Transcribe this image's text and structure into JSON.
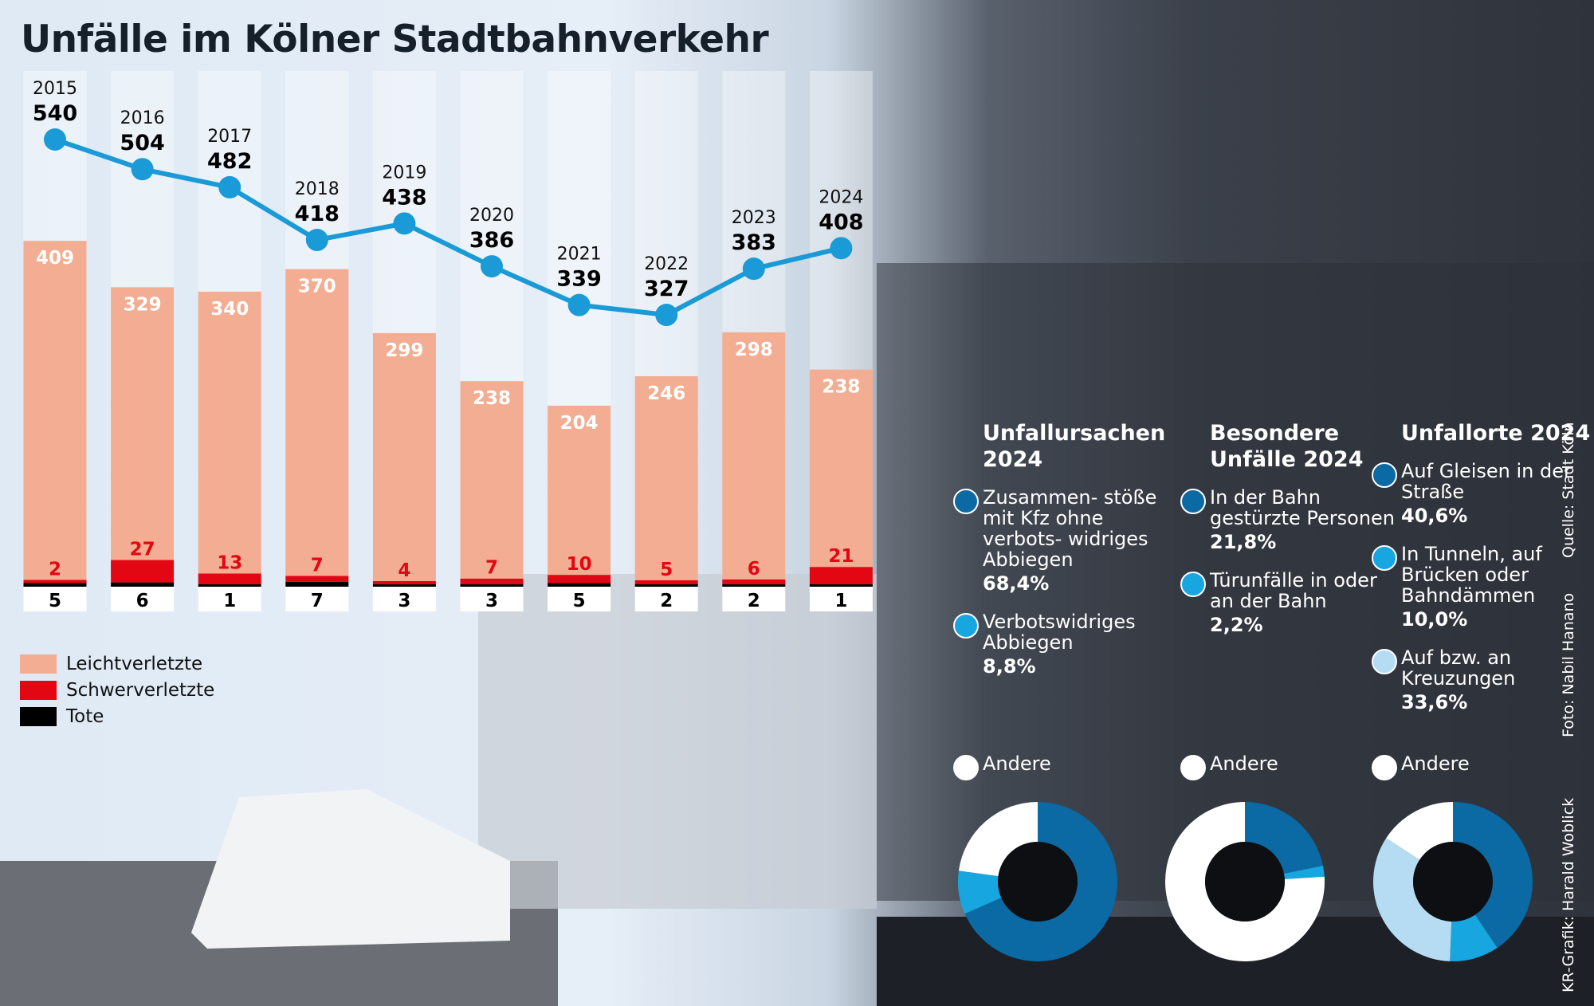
{
  "title": "Unfälle im Kölner Stadtbahnverkehr",
  "colors": {
    "leicht": "#f2ad92",
    "schwer": "#e30613",
    "tote": "#000000",
    "line": "#1a9ad6",
    "dark": "#0b6aa3",
    "mid": "#17a6df",
    "light": "#b6dcf3",
    "other": "#ffffff"
  },
  "chart_data": [
    {
      "type": "bar+line",
      "categories": [
        "2015",
        "2016",
        "2017",
        "2018",
        "2019",
        "2020",
        "2021",
        "2022",
        "2023",
        "2024"
      ],
      "series": [
        {
          "name": "Leichtverletzte",
          "values": [
            409,
            329,
            340,
            370,
            299,
            238,
            204,
            246,
            298,
            238
          ]
        },
        {
          "name": "Schwerverletzte",
          "values": [
            2,
            27,
            13,
            7,
            4,
            7,
            10,
            5,
            6,
            21
          ]
        },
        {
          "name": "Tote",
          "values": [
            5,
            6,
            1,
            7,
            3,
            3,
            5,
            2,
            2,
            1
          ]
        }
      ],
      "line_values": [
        540,
        504,
        482,
        418,
        438,
        386,
        339,
        327,
        383,
        408
      ],
      "stacked": true,
      "legend": "bottom-left"
    },
    {
      "type": "pie",
      "title": "Unfallursachen 2024",
      "slices": [
        {
          "label": "Zusammen- stöße mit Kfz ohne verbots- widriges Abbiegen",
          "value": 68.4,
          "pct": "68,4%",
          "color": "dark"
        },
        {
          "label": "Verbotswidriges Abbiegen",
          "value": 8.8,
          "pct": "8,8%",
          "color": "mid"
        },
        {
          "label": "Andere",
          "value": 22.8,
          "color": "other"
        }
      ]
    },
    {
      "type": "pie",
      "title": "Besondere Unfälle 2024",
      "slices": [
        {
          "label": "In der Bahn gestürzte Personen",
          "value": 21.8,
          "pct": "21,8%",
          "color": "dark"
        },
        {
          "label": "Türunfälle in oder an der Bahn",
          "value": 2.2,
          "pct": "2,2%",
          "color": "mid"
        },
        {
          "label": "Andere",
          "value": 76.0,
          "color": "other"
        }
      ]
    },
    {
      "type": "pie",
      "title": "Unfallorte 2024",
      "slices": [
        {
          "label": "Auf Gleisen in der Straße",
          "value": 40.6,
          "pct": "40,6%",
          "color": "dark"
        },
        {
          "label": "In Tunneln, auf Brücken oder Bahndämmen",
          "value": 10.0,
          "pct": "10,0%",
          "color": "mid"
        },
        {
          "label": "Auf bzw. an Kreuzungen",
          "value": 33.6,
          "pct": "33,6%",
          "color": "light"
        },
        {
          "label": "Andere",
          "value": 15.8,
          "color": "other"
        }
      ]
    }
  ],
  "credits": {
    "source": "Quelle: Stadt Köln",
    "photo": "Foto: Nabil Hanano",
    "graphic": "KR-Grafik: Harald Woblick"
  }
}
